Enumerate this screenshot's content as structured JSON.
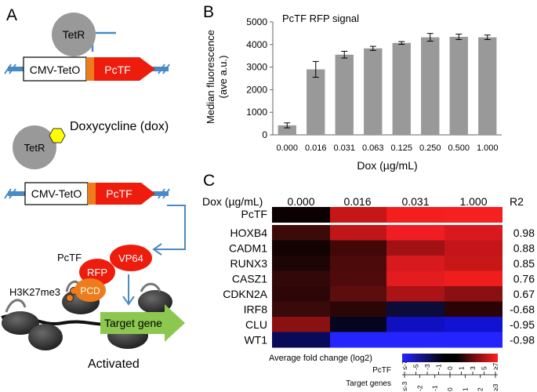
{
  "panels": {
    "a": "A",
    "b": "B",
    "c": "C"
  },
  "panel_a": {
    "tetr_label": "TetR",
    "promoter_label": "CMV-TetO",
    "gene_label": "PcTF",
    "dox_label": "Doxycycline (dox)",
    "pctf_label": "PcTF",
    "vp64_label": "VP64",
    "rfp_label": "RFP",
    "pcd_label": "PCD",
    "mark_label": "H3K27me3",
    "target_label": "Target gene",
    "activated_label": "Activated"
  },
  "chart_data": {
    "type": "bar",
    "title": "PcTF RFP signal",
    "xlabel": "Dox (µg/mL)",
    "ylabel_line1": "Median fluorescence",
    "ylabel_line2": "(ave a.u.)",
    "categories": [
      "0.000",
      "0.016",
      "0.031",
      "0.063",
      "0.125",
      "0.250",
      "0.500",
      "1.000"
    ],
    "values": [
      420,
      2900,
      3550,
      3830,
      4070,
      4320,
      4340,
      4320
    ],
    "errors": [
      110,
      350,
      150,
      90,
      60,
      170,
      120,
      100
    ],
    "ylim": [
      0,
      5000
    ],
    "yticks": [
      "0",
      "1000",
      "2000",
      "3000",
      "4000",
      "5000"
    ],
    "bar_color": "#999999"
  },
  "heatmap": {
    "header_label": "Dox (µg/mL)",
    "columns": [
      "0.000",
      "0.016",
      "0.031",
      "1.000"
    ],
    "r2_header": "R2",
    "pctf_row": {
      "name": "PcTF",
      "colors": [
        "#0d0000",
        "#c61616",
        "#f31e1e",
        "#f52020"
      ]
    },
    "rows": [
      {
        "name": "HOXB4",
        "r2": "0.98",
        "colors": [
          "#3d0a0a",
          "#c0161a",
          "#f01e22",
          "#d81a1f"
        ]
      },
      {
        "name": "CADM1",
        "r2": "0.88",
        "colors": [
          "#120202",
          "#420808",
          "#a01216",
          "#c4161a"
        ]
      },
      {
        "name": "RUNX3",
        "r2": "0.85",
        "colors": [
          "#1e0505",
          "#4c0a0b",
          "#d8191e",
          "#c81719"
        ]
      },
      {
        "name": "CASZ1",
        "r2": "0.76",
        "colors": [
          "#320808",
          "#4f0b0c",
          "#e31c20",
          "#f01d1d"
        ]
      },
      {
        "name": "CDKN2A",
        "r2": "0.67",
        "colors": [
          "#2d0707",
          "#5c0e0f",
          "#ab1316",
          "#8b1012"
        ]
      },
      {
        "name": "IRF8",
        "r2": "-0.68",
        "colors": [
          "#3a0909",
          "#2b0606",
          "#0c0c38",
          "#2a0404"
        ]
      },
      {
        "name": "CLU",
        "r2": "-0.95",
        "colors": [
          "#8a1011",
          "#05051e",
          "#1010c0",
          "#1212d2"
        ]
      },
      {
        "name": "WT1",
        "r2": "-0.98",
        "colors": [
          "#0a0a5a",
          "#2424ff",
          "#2424ff",
          "#2424ff"
        ]
      }
    ],
    "legend": {
      "title": "Average fold change (log2)",
      "pctf_label": "PcTF",
      "target_label": "Target genes",
      "pctf_ticks": [
        "≤-7",
        "-5",
        "-3",
        "-1",
        "0",
        "1",
        "3",
        "5",
        "≥7"
      ],
      "target_ticks": [
        "≤-3",
        "-2",
        "-1",
        "0",
        "1",
        "2",
        "≥3"
      ]
    }
  },
  "colors": {
    "tetr": "#999999",
    "repress": "#4a8ac4",
    "pctf_red": "#ee1c0c",
    "orange": "#ed7d1c",
    "dox_yellow": "#ffff00",
    "arrow_green": "#8cc850",
    "dna": "#6fa0d0"
  }
}
